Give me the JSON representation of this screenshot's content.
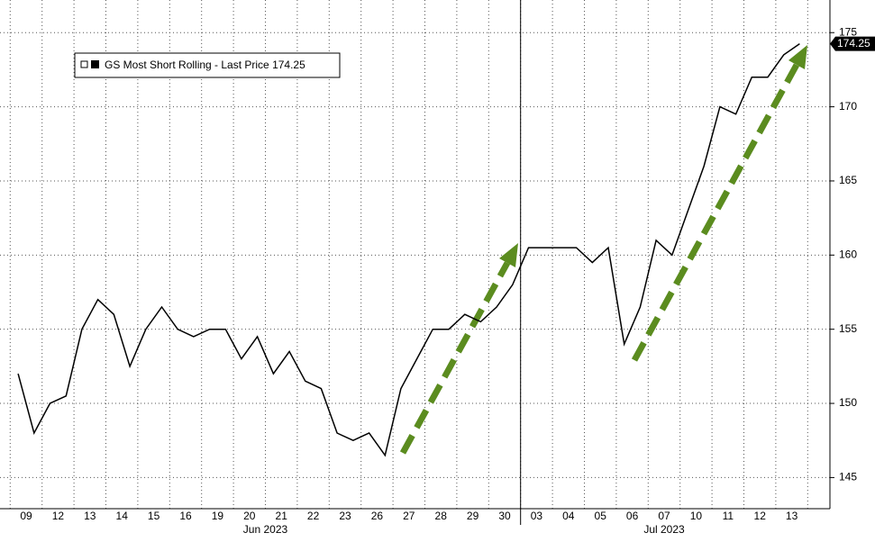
{
  "chart_data": {
    "type": "line",
    "categories": [
      "09",
      null,
      "12",
      null,
      "13",
      null,
      "14",
      null,
      "15",
      null,
      "16",
      null,
      "19",
      null,
      "20",
      null,
      "21",
      null,
      "22",
      null,
      "23",
      null,
      "26",
      null,
      "27",
      null,
      "28",
      null,
      "29",
      null,
      "30",
      null,
      "03",
      null,
      "04",
      null,
      "05",
      null,
      "06",
      null,
      "07",
      null,
      "10",
      null,
      "11",
      null,
      "12",
      null,
      "13",
      null
    ],
    "months": [
      "Jun 2023",
      "Jul 2023"
    ],
    "series": [
      {
        "name": "GS Most Short Rolling - Last Price 174.25",
        "color": "#000000",
        "values": [
          152,
          148,
          150,
          150.5,
          155,
          157,
          156,
          152.5,
          155,
          156.5,
          155,
          154.5,
          155,
          155,
          153,
          154.5,
          152,
          153.5,
          151.5,
          151,
          148,
          147.5,
          148,
          146.5,
          151,
          153,
          155,
          155,
          156,
          155.5,
          156.5,
          158,
          160.5,
          160.5,
          160.5,
          160.5,
          159.5,
          160.5,
          154,
          156.5,
          161,
          160,
          163,
          166,
          170,
          169.5,
          172,
          172,
          173.5,
          174.25
        ]
      }
    ],
    "last_price": 174.25,
    "ylim": [
      142.9,
      177.2
    ],
    "yticks": [
      145,
      150,
      155,
      160,
      165,
      170,
      175
    ],
    "grid": true
  }
}
